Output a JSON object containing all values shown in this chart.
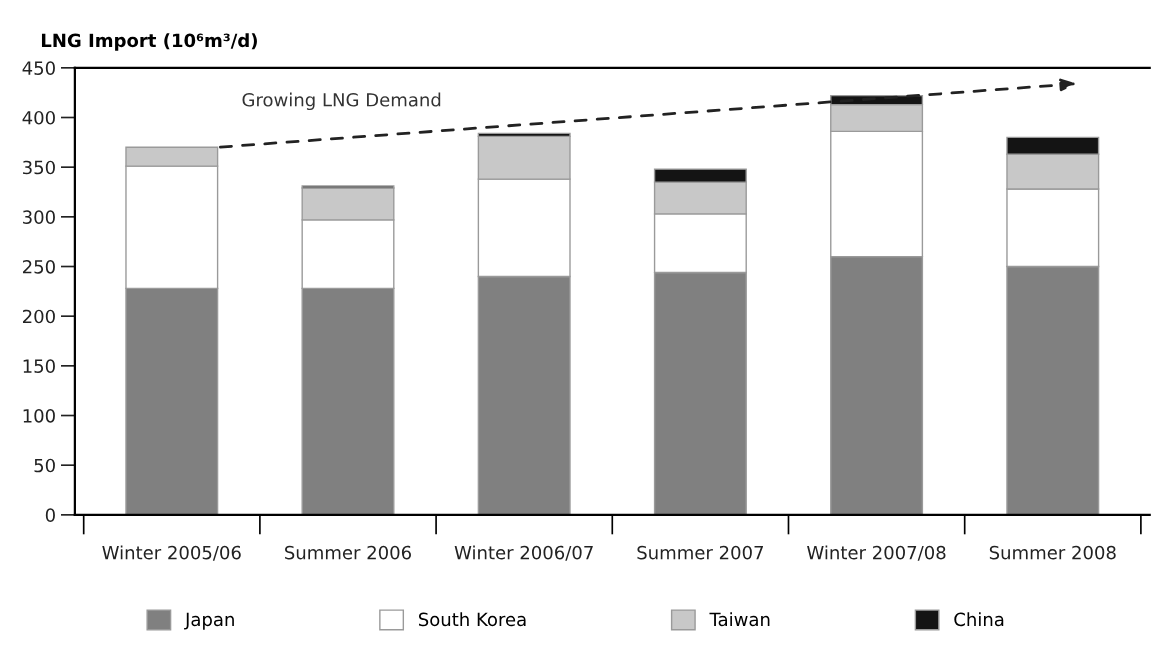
{
  "chart_data": {
    "type": "bar",
    "stacked": true,
    "ylabel": "LNG Import (10⁶m³/d)",
    "categories": [
      "Winter 2005/06",
      "Summer 2006",
      "Winter 2006/07",
      "Summer 2007",
      "Winter 2007/08",
      "Summer 2008"
    ],
    "series": [
      {
        "name": "Japan",
        "color": "#808080",
        "values": [
          228,
          228,
          240,
          244,
          260,
          250
        ]
      },
      {
        "name": "South Korea",
        "color": "#ffffff",
        "values": [
          123,
          69,
          98,
          59,
          126,
          78
        ]
      },
      {
        "name": "Taiwan",
        "color": "#c8c8c8",
        "values": [
          19,
          32,
          43,
          32,
          27,
          35
        ]
      },
      {
        "name": "China",
        "color": "#141414",
        "values": [
          null,
          2,
          3,
          13,
          9,
          17
        ]
      }
    ],
    "ylim": [
      0,
      450
    ],
    "yticks": [
      0,
      50,
      100,
      150,
      200,
      250,
      300,
      350,
      400,
      450
    ],
    "annotations": [
      "Growing LNG Demand"
    ],
    "grid": false,
    "legend": "bottom"
  }
}
